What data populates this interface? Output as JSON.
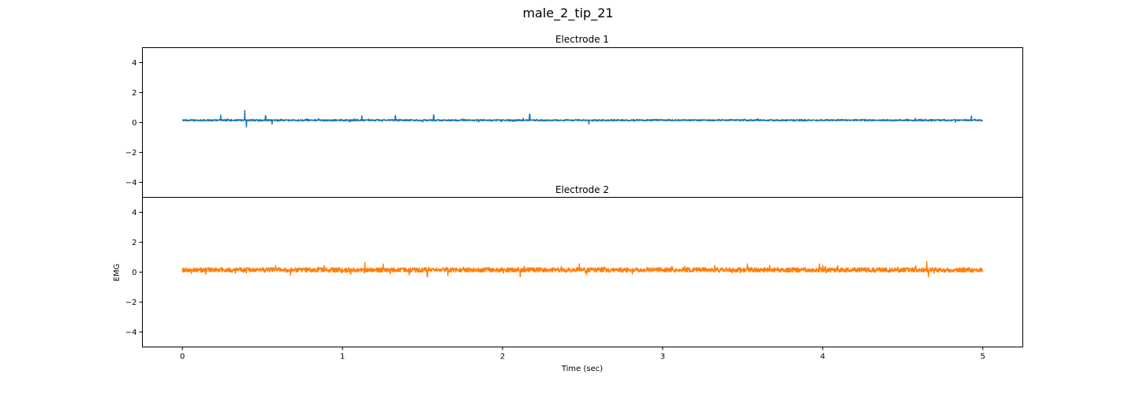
{
  "figure": {
    "title": "male_2_tip_21"
  },
  "chart_data": [
    {
      "type": "line",
      "title": "Electrode 1",
      "xlabel": "",
      "ylabel": "",
      "xlim": [
        -0.25,
        5.25
      ],
      "ylim": [
        -5,
        5
      ],
      "x_ticks": [],
      "y_ticks": [
        -4,
        -2,
        0,
        2,
        4
      ],
      "y_tick_labels": [
        "−4",
        "−2",
        "0",
        "2",
        "4"
      ],
      "grid": false,
      "series": [
        {
          "color": "#1f77b4",
          "x_range": [
            0,
            5
          ],
          "baseline": 0.15,
          "noise_amplitude": 0.05,
          "spikes": [
            {
              "x": 0.24,
              "y": 0.5
            },
            {
              "x": 0.39,
              "y": 0.8
            },
            {
              "x": 0.4,
              "y": -0.3
            },
            {
              "x": 0.52,
              "y": 0.45
            },
            {
              "x": 0.56,
              "y": -0.1
            },
            {
              "x": 1.12,
              "y": 0.45
            },
            {
              "x": 1.33,
              "y": 0.45
            },
            {
              "x": 1.57,
              "y": 0.5
            },
            {
              "x": 2.17,
              "y": 0.55
            },
            {
              "x": 2.54,
              "y": -0.1
            },
            {
              "x": 4.93,
              "y": 0.45
            }
          ]
        }
      ]
    },
    {
      "type": "line",
      "title": "Electrode 2",
      "xlabel": "Time (sec)",
      "ylabel": "EMG",
      "xlim": [
        -0.25,
        5.25
      ],
      "ylim": [
        -5,
        5
      ],
      "x_ticks": [
        0,
        1,
        2,
        3,
        4,
        5
      ],
      "x_tick_labels": [
        "0",
        "1",
        "2",
        "3",
        "4",
        "5"
      ],
      "y_ticks": [
        -4,
        -2,
        0,
        2,
        4
      ],
      "y_tick_labels": [
        "−4",
        "−2",
        "0",
        "2",
        "4"
      ],
      "grid": false,
      "series": [
        {
          "color": "#ff7f0e",
          "x_range": [
            0,
            5
          ],
          "baseline": 0.15,
          "noise_amplitude": 0.15,
          "spikes": [
            {
              "x": 1.14,
              "y": 0.65
            },
            {
              "x": 1.53,
              "y": -0.3
            },
            {
              "x": 2.11,
              "y": -0.3
            },
            {
              "x": 2.48,
              "y": 0.55
            },
            {
              "x": 3.53,
              "y": 0.55
            },
            {
              "x": 3.98,
              "y": 0.55
            },
            {
              "x": 4.65,
              "y": 0.7
            },
            {
              "x": 4.66,
              "y": -0.3
            }
          ]
        }
      ]
    }
  ]
}
